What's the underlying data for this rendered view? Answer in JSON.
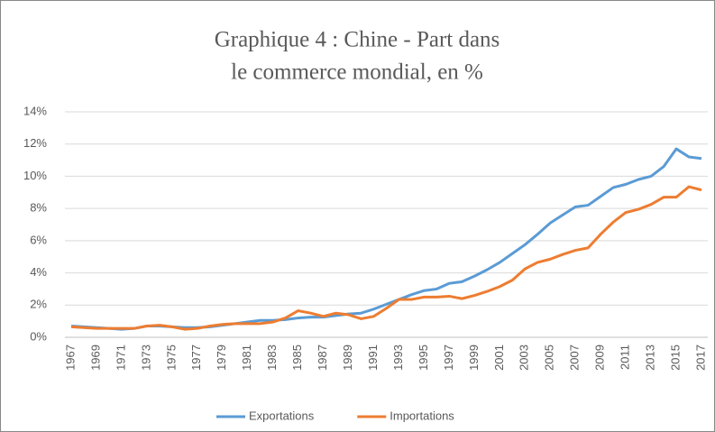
{
  "chart_data": {
    "type": "line",
    "title": [
      "Graphique 4 : Chine - Part dans",
      "le commerce mondial, en %"
    ],
    "categories": [
      "1967",
      null,
      "1969",
      null,
      "1971",
      null,
      "1973",
      null,
      "1975",
      null,
      "1977",
      null,
      "1979",
      null,
      "1981",
      null,
      "1983",
      null,
      "1985",
      null,
      "1987",
      null,
      "1989",
      null,
      "1991",
      null,
      "1993",
      null,
      "1995",
      null,
      "1997",
      null,
      "1999",
      null,
      "2001",
      null,
      "2003",
      null,
      "2005",
      null,
      "2007",
      null,
      "2009",
      null,
      "2011",
      null,
      "2013",
      null,
      "2015",
      null,
      "2017"
    ],
    "series": [
      {
        "name": "Exportations",
        "color": "#5b9bd5",
        "values": [
          0.7,
          0.65,
          0.6,
          0.55,
          0.5,
          0.55,
          0.7,
          0.7,
          0.65,
          0.6,
          0.6,
          0.65,
          0.75,
          0.85,
          0.95,
          1.05,
          1.05,
          1.1,
          1.2,
          1.25,
          1.25,
          1.35,
          1.45,
          1.5,
          1.75,
          2.05,
          2.35,
          2.65,
          2.9,
          3.0,
          3.35,
          3.45,
          3.8,
          4.2,
          4.65,
          5.2,
          5.75,
          6.4,
          7.1,
          7.6,
          8.1,
          8.2,
          8.75,
          9.3,
          9.5,
          9.8,
          10.0,
          10.6,
          11.7,
          11.2,
          11.1
        ]
      },
      {
        "name": "Importations",
        "color": "#ed7d31",
        "values": [
          0.65,
          0.6,
          0.55,
          0.55,
          0.55,
          0.55,
          0.7,
          0.75,
          0.65,
          0.5,
          0.55,
          0.7,
          0.8,
          0.85,
          0.85,
          0.85,
          0.95,
          1.2,
          1.65,
          1.5,
          1.3,
          1.5,
          1.4,
          1.15,
          1.3,
          1.8,
          2.35,
          2.35,
          2.5,
          2.5,
          2.55,
          2.4,
          2.6,
          2.85,
          3.15,
          3.55,
          4.25,
          4.65,
          4.85,
          5.15,
          5.4,
          5.55,
          6.4,
          7.15,
          7.75,
          7.95,
          8.25,
          8.7,
          8.7,
          9.35,
          9.15
        ]
      }
    ],
    "ylim": [
      0,
      14
    ],
    "yticks": [
      {
        "value": 0,
        "label": "0%"
      },
      {
        "value": 2,
        "label": "2%"
      },
      {
        "value": 4,
        "label": "4%"
      },
      {
        "value": 6,
        "label": "6%"
      },
      {
        "value": 8,
        "label": "8%"
      },
      {
        "value": 10,
        "label": "10%"
      },
      {
        "value": 12,
        "label": "12%"
      },
      {
        "value": 14,
        "label": "14%"
      }
    ],
    "grid": true,
    "legend": "bottom"
  }
}
